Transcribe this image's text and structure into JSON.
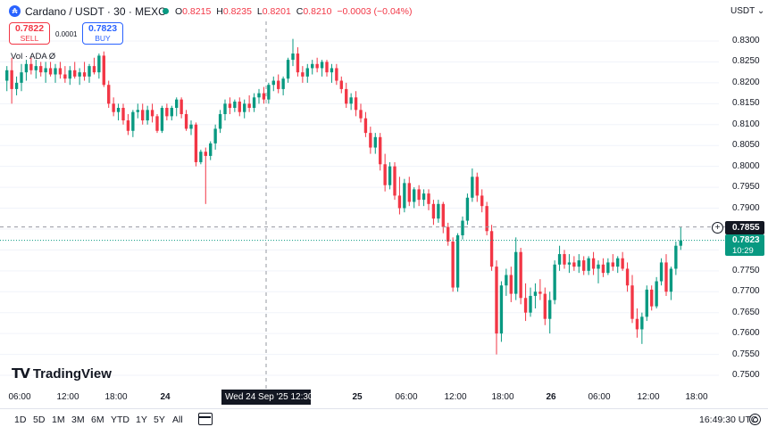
{
  "header": {
    "symbol_icon": "cardano-logo-icon",
    "title": "Cardano / USDT · 30 · MEXC",
    "ohlc": {
      "o_label": "O",
      "o_value": "0.8215",
      "h_label": "H",
      "h_value": "0.8235",
      "l_label": "L",
      "l_value": "0.8201",
      "c_label": "C",
      "c_value": "0.8210",
      "change": "−0.0003 (−0.04%)"
    },
    "currency_selector": "USDT ⌄"
  },
  "trade": {
    "sell_price": "0.7822",
    "sell_label": "SELL",
    "spread": "0.0001",
    "buy_price": "0.7823",
    "buy_label": "BUY"
  },
  "volume_label": "Vol · ADA  Ø",
  "y_axis": {
    "labels": [
      "0.8300",
      "0.8250",
      "0.8200",
      "0.8150",
      "0.8100",
      "0.8050",
      "0.8000",
      "0.7950",
      "0.7900",
      "0.7850",
      "0.7800",
      "0.7750",
      "0.7700",
      "0.7650",
      "0.7600",
      "0.7550",
      "0.7500"
    ],
    "crosshair_price": "0.7855",
    "current_price": "0.7823",
    "countdown": "10:29"
  },
  "x_axis": {
    "labels": [
      "06:00",
      "12:00",
      "18:00",
      "24",
      "06:00",
      "12:30",
      "25",
      "06:00",
      "12:00",
      "18:00",
      "26",
      "06:00",
      "12:00",
      "18:00"
    ],
    "crosshair_time": "Wed 24 Sep '25   12:30"
  },
  "brand": "TradingView",
  "bottom": {
    "ranges": [
      "1D",
      "5D",
      "1M",
      "3M",
      "6M",
      "YTD",
      "1Y",
      "5Y",
      "All"
    ],
    "clock": "16:49:30 UTC"
  },
  "colors": {
    "up": "#089981",
    "down": "#f23645",
    "accent": "#2962ff",
    "text": "#131722"
  },
  "chart_data": {
    "type": "candlestick",
    "symbol": "Cardano / USDT",
    "interval": "30",
    "exchange": "MEXC",
    "ylim": [
      0.75,
      0.83
    ],
    "candles": [
      {
        "o": 0.8205,
        "h": 0.824,
        "l": 0.818,
        "c": 0.823
      },
      {
        "o": 0.823,
        "h": 0.826,
        "l": 0.815,
        "c": 0.8185
      },
      {
        "o": 0.8185,
        "h": 0.8215,
        "l": 0.817,
        "c": 0.82
      },
      {
        "o": 0.82,
        "h": 0.8245,
        "l": 0.818,
        "c": 0.8225
      },
      {
        "o": 0.8225,
        "h": 0.8255,
        "l": 0.8205,
        "c": 0.8245
      },
      {
        "o": 0.8245,
        "h": 0.826,
        "l": 0.822,
        "c": 0.823
      },
      {
        "o": 0.823,
        "h": 0.8255,
        "l": 0.821,
        "c": 0.824
      },
      {
        "o": 0.824,
        "h": 0.825,
        "l": 0.8215,
        "c": 0.8225
      },
      {
        "o": 0.8225,
        "h": 0.825,
        "l": 0.82,
        "c": 0.8235
      },
      {
        "o": 0.8235,
        "h": 0.825,
        "l": 0.8215,
        "c": 0.822
      },
      {
        "o": 0.822,
        "h": 0.8245,
        "l": 0.82,
        "c": 0.8235
      },
      {
        "o": 0.8235,
        "h": 0.825,
        "l": 0.821,
        "c": 0.822
      },
      {
        "o": 0.822,
        "h": 0.824,
        "l": 0.82,
        "c": 0.821
      },
      {
        "o": 0.821,
        "h": 0.824,
        "l": 0.8195,
        "c": 0.823
      },
      {
        "o": 0.823,
        "h": 0.825,
        "l": 0.821,
        "c": 0.8215
      },
      {
        "o": 0.8215,
        "h": 0.8235,
        "l": 0.8195,
        "c": 0.8225
      },
      {
        "o": 0.8225,
        "h": 0.825,
        "l": 0.8205,
        "c": 0.8215
      },
      {
        "o": 0.8215,
        "h": 0.8245,
        "l": 0.82,
        "c": 0.824
      },
      {
        "o": 0.824,
        "h": 0.826,
        "l": 0.822,
        "c": 0.8225
      },
      {
        "o": 0.8225,
        "h": 0.827,
        "l": 0.821,
        "c": 0.8265
      },
      {
        "o": 0.8265,
        "h": 0.8275,
        "l": 0.819,
        "c": 0.8195
      },
      {
        "o": 0.8195,
        "h": 0.8205,
        "l": 0.814,
        "c": 0.815
      },
      {
        "o": 0.815,
        "h": 0.8165,
        "l": 0.812,
        "c": 0.813
      },
      {
        "o": 0.813,
        "h": 0.815,
        "l": 0.811,
        "c": 0.814
      },
      {
        "o": 0.814,
        "h": 0.815,
        "l": 0.81,
        "c": 0.811
      },
      {
        "o": 0.811,
        "h": 0.8125,
        "l": 0.8075,
        "c": 0.8085
      },
      {
        "o": 0.8085,
        "h": 0.8135,
        "l": 0.807,
        "c": 0.813
      },
      {
        "o": 0.813,
        "h": 0.815,
        "l": 0.8115,
        "c": 0.8135
      },
      {
        "o": 0.8135,
        "h": 0.815,
        "l": 0.81,
        "c": 0.811
      },
      {
        "o": 0.811,
        "h": 0.8145,
        "l": 0.81,
        "c": 0.8135
      },
      {
        "o": 0.8135,
        "h": 0.815,
        "l": 0.8105,
        "c": 0.812
      },
      {
        "o": 0.812,
        "h": 0.8125,
        "l": 0.808,
        "c": 0.8085
      },
      {
        "o": 0.8085,
        "h": 0.8145,
        "l": 0.808,
        "c": 0.814
      },
      {
        "o": 0.814,
        "h": 0.815,
        "l": 0.811,
        "c": 0.812
      },
      {
        "o": 0.812,
        "h": 0.8145,
        "l": 0.811,
        "c": 0.814
      },
      {
        "o": 0.814,
        "h": 0.8165,
        "l": 0.812,
        "c": 0.816
      },
      {
        "o": 0.816,
        "h": 0.8165,
        "l": 0.8115,
        "c": 0.8125
      },
      {
        "o": 0.8125,
        "h": 0.8135,
        "l": 0.8085,
        "c": 0.809
      },
      {
        "o": 0.809,
        "h": 0.811,
        "l": 0.8075,
        "c": 0.81
      },
      {
        "o": 0.81,
        "h": 0.8105,
        "l": 0.8,
        "c": 0.801
      },
      {
        "o": 0.801,
        "h": 0.804,
        "l": 0.8005,
        "c": 0.8035
      },
      {
        "o": 0.8035,
        "h": 0.8045,
        "l": 0.791,
        "c": 0.8025
      },
      {
        "o": 0.8025,
        "h": 0.806,
        "l": 0.8015,
        "c": 0.8055
      },
      {
        "o": 0.8055,
        "h": 0.81,
        "l": 0.804,
        "c": 0.809
      },
      {
        "o": 0.809,
        "h": 0.8135,
        "l": 0.808,
        "c": 0.8125
      },
      {
        "o": 0.8125,
        "h": 0.816,
        "l": 0.811,
        "c": 0.815
      },
      {
        "o": 0.815,
        "h": 0.8165,
        "l": 0.8125,
        "c": 0.814
      },
      {
        "o": 0.814,
        "h": 0.816,
        "l": 0.813,
        "c": 0.8155
      },
      {
        "o": 0.8155,
        "h": 0.8165,
        "l": 0.812,
        "c": 0.813
      },
      {
        "o": 0.813,
        "h": 0.816,
        "l": 0.8115,
        "c": 0.815
      },
      {
        "o": 0.815,
        "h": 0.817,
        "l": 0.813,
        "c": 0.814
      },
      {
        "o": 0.814,
        "h": 0.8175,
        "l": 0.813,
        "c": 0.8165
      },
      {
        "o": 0.8165,
        "h": 0.8185,
        "l": 0.815,
        "c": 0.8175
      },
      {
        "o": 0.8175,
        "h": 0.819,
        "l": 0.815,
        "c": 0.816
      },
      {
        "o": 0.816,
        "h": 0.82,
        "l": 0.815,
        "c": 0.8195
      },
      {
        "o": 0.8195,
        "h": 0.8215,
        "l": 0.818,
        "c": 0.8205
      },
      {
        "o": 0.8205,
        "h": 0.822,
        "l": 0.8175,
        "c": 0.8185
      },
      {
        "o": 0.8185,
        "h": 0.8215,
        "l": 0.817,
        "c": 0.821
      },
      {
        "o": 0.821,
        "h": 0.826,
        "l": 0.82,
        "c": 0.8255
      },
      {
        "o": 0.8255,
        "h": 0.8305,
        "l": 0.824,
        "c": 0.827
      },
      {
        "o": 0.827,
        "h": 0.8285,
        "l": 0.8215,
        "c": 0.8225
      },
      {
        "o": 0.8225,
        "h": 0.824,
        "l": 0.82,
        "c": 0.8215
      },
      {
        "o": 0.8215,
        "h": 0.8245,
        "l": 0.82,
        "c": 0.8235
      },
      {
        "o": 0.8235,
        "h": 0.8255,
        "l": 0.822,
        "c": 0.8245
      },
      {
        "o": 0.8245,
        "h": 0.826,
        "l": 0.8225,
        "c": 0.8235
      },
      {
        "o": 0.8235,
        "h": 0.8255,
        "l": 0.8215,
        "c": 0.825
      },
      {
        "o": 0.825,
        "h": 0.8255,
        "l": 0.8215,
        "c": 0.8225
      },
      {
        "o": 0.8225,
        "h": 0.8245,
        "l": 0.82,
        "c": 0.8235
      },
      {
        "o": 0.8235,
        "h": 0.8245,
        "l": 0.8195,
        "c": 0.8205
      },
      {
        "o": 0.8205,
        "h": 0.8215,
        "l": 0.8175,
        "c": 0.8185
      },
      {
        "o": 0.8185,
        "h": 0.82,
        "l": 0.814,
        "c": 0.815
      },
      {
        "o": 0.815,
        "h": 0.8175,
        "l": 0.8135,
        "c": 0.8165
      },
      {
        "o": 0.8165,
        "h": 0.818,
        "l": 0.812,
        "c": 0.8135
      },
      {
        "o": 0.8135,
        "h": 0.815,
        "l": 0.8105,
        "c": 0.8115
      },
      {
        "o": 0.8115,
        "h": 0.813,
        "l": 0.807,
        "c": 0.808
      },
      {
        "o": 0.808,
        "h": 0.8095,
        "l": 0.803,
        "c": 0.8045
      },
      {
        "o": 0.8045,
        "h": 0.808,
        "l": 0.803,
        "c": 0.807
      },
      {
        "o": 0.807,
        "h": 0.808,
        "l": 0.799,
        "c": 0.8005
      },
      {
        "o": 0.8005,
        "h": 0.803,
        "l": 0.794,
        "c": 0.7955
      },
      {
        "o": 0.7955,
        "h": 0.801,
        "l": 0.7945,
        "c": 0.8
      },
      {
        "o": 0.8,
        "h": 0.801,
        "l": 0.792,
        "c": 0.793
      },
      {
        "o": 0.793,
        "h": 0.7975,
        "l": 0.7885,
        "c": 0.79
      },
      {
        "o": 0.79,
        "h": 0.797,
        "l": 0.789,
        "c": 0.796
      },
      {
        "o": 0.796,
        "h": 0.7975,
        "l": 0.7905,
        "c": 0.7915
      },
      {
        "o": 0.7915,
        "h": 0.795,
        "l": 0.79,
        "c": 0.7945
      },
      {
        "o": 0.7945,
        "h": 0.7955,
        "l": 0.7905,
        "c": 0.792
      },
      {
        "o": 0.792,
        "h": 0.7945,
        "l": 0.7905,
        "c": 0.7935
      },
      {
        "o": 0.7935,
        "h": 0.7945,
        "l": 0.7895,
        "c": 0.791
      },
      {
        "o": 0.791,
        "h": 0.792,
        "l": 0.786,
        "c": 0.7875
      },
      {
        "o": 0.7875,
        "h": 0.792,
        "l": 0.7865,
        "c": 0.791
      },
      {
        "o": 0.791,
        "h": 0.7915,
        "l": 0.784,
        "c": 0.7855
      },
      {
        "o": 0.7855,
        "h": 0.7865,
        "l": 0.781,
        "c": 0.782
      },
      {
        "o": 0.782,
        "h": 0.783,
        "l": 0.77,
        "c": 0.771
      },
      {
        "o": 0.771,
        "h": 0.784,
        "l": 0.77,
        "c": 0.7835
      },
      {
        "o": 0.7835,
        "h": 0.788,
        "l": 0.7825,
        "c": 0.787
      },
      {
        "o": 0.787,
        "h": 0.7935,
        "l": 0.786,
        "c": 0.7925
      },
      {
        "o": 0.7925,
        "h": 0.7995,
        "l": 0.7915,
        "c": 0.7975
      },
      {
        "o": 0.7975,
        "h": 0.7985,
        "l": 0.7915,
        "c": 0.793
      },
      {
        "o": 0.793,
        "h": 0.7945,
        "l": 0.789,
        "c": 0.7905
      },
      {
        "o": 0.7905,
        "h": 0.7915,
        "l": 0.7835,
        "c": 0.7845
      },
      {
        "o": 0.7845,
        "h": 0.786,
        "l": 0.775,
        "c": 0.776
      },
      {
        "o": 0.776,
        "h": 0.7775,
        "l": 0.755,
        "c": 0.76
      },
      {
        "o": 0.76,
        "h": 0.7725,
        "l": 0.758,
        "c": 0.7715
      },
      {
        "o": 0.7715,
        "h": 0.7755,
        "l": 0.769,
        "c": 0.774
      },
      {
        "o": 0.774,
        "h": 0.776,
        "l": 0.7675,
        "c": 0.7695
      },
      {
        "o": 0.7695,
        "h": 0.783,
        "l": 0.768,
        "c": 0.7795
      },
      {
        "o": 0.7795,
        "h": 0.7805,
        "l": 0.767,
        "c": 0.7685
      },
      {
        "o": 0.7685,
        "h": 0.772,
        "l": 0.763,
        "c": 0.765
      },
      {
        "o": 0.765,
        "h": 0.771,
        "l": 0.764,
        "c": 0.769
      },
      {
        "o": 0.769,
        "h": 0.772,
        "l": 0.766,
        "c": 0.77
      },
      {
        "o": 0.77,
        "h": 0.773,
        "l": 0.768,
        "c": 0.7695
      },
      {
        "o": 0.7695,
        "h": 0.771,
        "l": 0.762,
        "c": 0.7635
      },
      {
        "o": 0.7635,
        "h": 0.77,
        "l": 0.76,
        "c": 0.768
      },
      {
        "o": 0.768,
        "h": 0.7775,
        "l": 0.767,
        "c": 0.7765
      },
      {
        "o": 0.7765,
        "h": 0.781,
        "l": 0.775,
        "c": 0.779
      },
      {
        "o": 0.779,
        "h": 0.78,
        "l": 0.7755,
        "c": 0.7765
      },
      {
        "o": 0.7765,
        "h": 0.779,
        "l": 0.7745,
        "c": 0.777
      },
      {
        "o": 0.777,
        "h": 0.7785,
        "l": 0.775,
        "c": 0.776
      },
      {
        "o": 0.776,
        "h": 0.779,
        "l": 0.7745,
        "c": 0.7775
      },
      {
        "o": 0.7775,
        "h": 0.7785,
        "l": 0.774,
        "c": 0.775
      },
      {
        "o": 0.775,
        "h": 0.7785,
        "l": 0.774,
        "c": 0.778
      },
      {
        "o": 0.778,
        "h": 0.7795,
        "l": 0.774,
        "c": 0.7755
      },
      {
        "o": 0.7755,
        "h": 0.7775,
        "l": 0.772,
        "c": 0.7765
      },
      {
        "o": 0.7765,
        "h": 0.778,
        "l": 0.7735,
        "c": 0.7745
      },
      {
        "o": 0.7745,
        "h": 0.778,
        "l": 0.774,
        "c": 0.777
      },
      {
        "o": 0.777,
        "h": 0.779,
        "l": 0.775,
        "c": 0.776
      },
      {
        "o": 0.776,
        "h": 0.7785,
        "l": 0.7745,
        "c": 0.778
      },
      {
        "o": 0.778,
        "h": 0.7795,
        "l": 0.775,
        "c": 0.7755
      },
      {
        "o": 0.7755,
        "h": 0.777,
        "l": 0.77,
        "c": 0.7715
      },
      {
        "o": 0.7715,
        "h": 0.774,
        "l": 0.7625,
        "c": 0.7635
      },
      {
        "o": 0.7635,
        "h": 0.766,
        "l": 0.759,
        "c": 0.761
      },
      {
        "o": 0.761,
        "h": 0.765,
        "l": 0.7575,
        "c": 0.764
      },
      {
        "o": 0.764,
        "h": 0.7715,
        "l": 0.763,
        "c": 0.7705
      },
      {
        "o": 0.7705,
        "h": 0.7715,
        "l": 0.7655,
        "c": 0.7665
      },
      {
        "o": 0.7665,
        "h": 0.7735,
        "l": 0.766,
        "c": 0.7725
      },
      {
        "o": 0.7725,
        "h": 0.778,
        "l": 0.7715,
        "c": 0.777
      },
      {
        "o": 0.777,
        "h": 0.779,
        "l": 0.769,
        "c": 0.77
      },
      {
        "o": 0.77,
        "h": 0.776,
        "l": 0.768,
        "c": 0.7755
      },
      {
        "o": 0.7755,
        "h": 0.782,
        "l": 0.774,
        "c": 0.781
      },
      {
        "o": 0.781,
        "h": 0.7855,
        "l": 0.78,
        "c": 0.7823
      }
    ]
  }
}
